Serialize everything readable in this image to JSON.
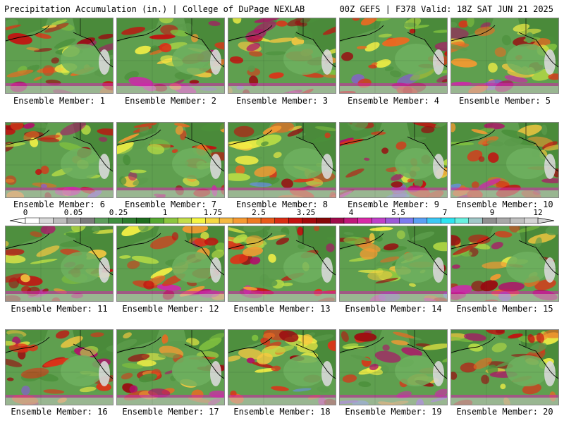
{
  "header": {
    "left": "Precipitation Accumulation (in.) | College of DuPage NEXLAB",
    "right": "00Z GEFS | F378 Valid: 18Z SAT JUN 21 2025"
  },
  "members": [
    "Ensemble Member: 1",
    "Ensemble Member: 2",
    "Ensemble Member: 3",
    "Ensemble Member: 4",
    "Ensemble Member: 5",
    "Ensemble Member: 6",
    "Ensemble Member: 7",
    "Ensemble Member: 8",
    "Ensemble Member: 9",
    "Ensemble Member: 10",
    "Ensemble Member: 11",
    "Ensemble Member: 12",
    "Ensemble Member: 13",
    "Ensemble Member: 14",
    "Ensemble Member: 15",
    "Ensemble Member: 16",
    "Ensemble Member: 17",
    "Ensemble Member: 18",
    "Ensemble Member: 19",
    "Ensemble Member: 20"
  ],
  "colorbar": {
    "ticks": [
      "0",
      "0.05",
      "0.25",
      "1",
      "1.75",
      "2.5",
      "3.25",
      "4",
      "5.5",
      "7",
      "9",
      "12"
    ],
    "colors": [
      "#ffffff",
      "#d9d9d9",
      "#bdbdbd",
      "#9c9c9c",
      "#7c7c7c",
      "#5d9e5d",
      "#3f8f3f",
      "#2e7d2e",
      "#1f6e1f",
      "#56a832",
      "#8cc63f",
      "#c4de4a",
      "#f5f542",
      "#f5d742",
      "#f5b942",
      "#f59a32",
      "#ef7a22",
      "#e85a1a",
      "#d92e14",
      "#c41010",
      "#a5080c",
      "#860808",
      "#a00a4a",
      "#c0187a",
      "#d92aa8",
      "#c040c8",
      "#9b5ad8",
      "#7c7cf0",
      "#5aa0f5",
      "#3cc8f5",
      "#2ee4f0",
      "#68f0e0",
      "#a0c8c8",
      "#909090",
      "#a8a8a8",
      "#c0c0c0",
      "#d4d4d4"
    ],
    "land_color": "#3f8f3f",
    "ocean_color": "#5b9b4b"
  }
}
